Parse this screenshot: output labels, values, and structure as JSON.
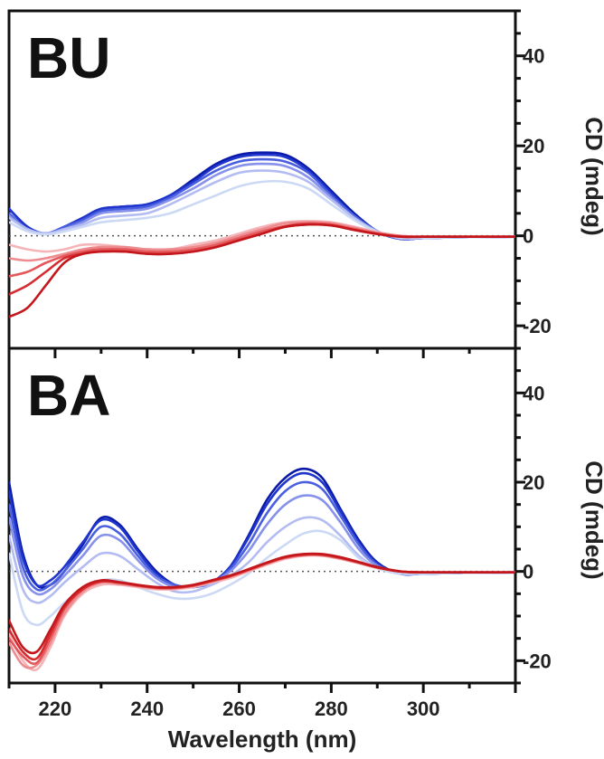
{
  "chart_data": [
    {
      "type": "line",
      "panel_label": "BU",
      "xlabel": "",
      "ylabel": "CD (mdeg)",
      "xlim": [
        210,
        320
      ],
      "ylim": [
        -25,
        50
      ],
      "x_ticks": [],
      "y_ticks": [
        40,
        20,
        0,
        -20
      ],
      "zero_reference_line": true,
      "grid": false,
      "x": [
        210,
        214,
        218,
        222,
        226,
        230,
        235,
        240,
        245,
        250,
        255,
        260,
        265,
        270,
        275,
        280,
        285,
        290,
        295,
        300,
        310,
        320
      ],
      "series": [
        {
          "color": "#0a1aa8",
          "values": [
            6,
            2,
            0.5,
            2,
            4,
            6,
            6.5,
            7,
            9,
            12.5,
            16,
            18,
            18.5,
            18,
            15,
            10,
            5,
            1,
            -0.7,
            -0.5,
            -0.3,
            -0.2
          ]
        },
        {
          "color": "#1f35cc",
          "values": [
            6,
            2,
            0.5,
            2,
            4,
            6,
            6.5,
            7,
            9,
            12,
            15.5,
            17.5,
            18,
            17.5,
            14.5,
            9.5,
            4.5,
            1,
            -0.7,
            -0.5,
            -0.3,
            -0.2
          ]
        },
        {
          "color": "#4a5fe0",
          "values": [
            5,
            1.5,
            0.5,
            2,
            3.5,
            5.5,
            6,
            6.5,
            8.5,
            11.5,
            14.5,
            16.5,
            17,
            16.5,
            14,
            9,
            4.5,
            1,
            -0.6,
            -0.5,
            -0.3,
            -0.2
          ]
        },
        {
          "color": "#8591ea",
          "values": [
            4.5,
            1.5,
            0.5,
            1.5,
            3,
            5,
            5.5,
            6,
            8,
            10.5,
            13.5,
            15.5,
            16,
            15.5,
            13,
            8.5,
            4,
            1,
            -0.6,
            -0.5,
            -0.3,
            -0.2
          ]
        },
        {
          "color": "#b3bcf2",
          "values": [
            4,
            1.5,
            0.5,
            1.5,
            2.5,
            4,
            4.5,
            5,
            7,
            9.5,
            12,
            14,
            14.5,
            14,
            12,
            8,
            4,
            1,
            -0.5,
            -0.5,
            -0.3,
            -0.2
          ]
        },
        {
          "color": "#cbd9f5",
          "values": [
            3,
            1,
            0.3,
            1,
            2,
            3,
            3.5,
            4,
            5,
            7,
            9,
            11,
            12,
            12,
            10.5,
            7,
            3.5,
            0.8,
            -0.4,
            -0.4,
            -0.3,
            -0.2
          ]
        },
        {
          "color": "#f4b5b8",
          "values": [
            -2,
            -3,
            -3.5,
            -3,
            -2,
            -2,
            -2.5,
            -3,
            -3,
            -2,
            -1,
            0.5,
            2,
            3,
            3.3,
            3,
            2,
            0.8,
            0,
            -0.2,
            -0.2,
            -0.2
          ]
        },
        {
          "color": "#ee8b8e",
          "values": [
            -5,
            -5.5,
            -5,
            -4,
            -3,
            -2.5,
            -2.5,
            -3,
            -3,
            -2.5,
            -1.5,
            0,
            1.5,
            2.8,
            3,
            2.8,
            1.8,
            0.7,
            0,
            -0.2,
            -0.2,
            -0.2
          ]
        },
        {
          "color": "#e4585c",
          "values": [
            -9,
            -8,
            -6,
            -4.5,
            -3.5,
            -3,
            -3,
            -3.5,
            -3.5,
            -3,
            -2,
            -0.5,
            1,
            2.2,
            2.8,
            2.5,
            1.5,
            0.5,
            -0.1,
            -0.2,
            -0.2,
            -0.2
          ]
        },
        {
          "color": "#d62b2f",
          "values": [
            -13,
            -11,
            -8,
            -5,
            -4,
            -3.5,
            -3.5,
            -4,
            -4,
            -3.5,
            -2.5,
            -1,
            0.5,
            2,
            2.5,
            2.3,
            1.3,
            0.4,
            -0.2,
            -0.2,
            -0.2,
            -0.2
          ]
        },
        {
          "color": "#c3171c",
          "values": [
            -18,
            -16,
            -11,
            -6,
            -4,
            -3.5,
            -3.5,
            -4,
            -4,
            -3.5,
            -2.5,
            -1,
            0.5,
            2,
            2.5,
            2.3,
            1.3,
            0.4,
            -0.2,
            -0.2,
            -0.2,
            -0.2
          ]
        }
      ]
    },
    {
      "type": "line",
      "panel_label": "BA",
      "xlabel": "Wavelength (nm)",
      "ylabel": "CD (mdeg)",
      "xlim": [
        210,
        320
      ],
      "ylim": [
        -25,
        50
      ],
      "x_ticks": [
        220,
        240,
        260,
        280,
        300
      ],
      "y_ticks": [
        40,
        20,
        0,
        -20
      ],
      "zero_reference_line": true,
      "grid": false,
      "x": [
        210,
        213,
        216,
        219,
        222,
        226,
        230,
        234,
        238,
        242,
        246,
        250,
        254,
        258,
        262,
        266,
        270,
        274,
        278,
        282,
        286,
        290,
        295,
        300,
        310,
        320
      ],
      "series": [
        {
          "color": "#0a1aa8",
          "values": [
            20,
            4,
            -3,
            -3,
            0,
            6,
            12,
            10.5,
            5,
            0,
            -3,
            -3.5,
            -2.5,
            1,
            8,
            16,
            21,
            23,
            21,
            14,
            7,
            2,
            -0.5,
            -0.5,
            -0.3,
            -0.2
          ]
        },
        {
          "color": "#1f35cc",
          "values": [
            18,
            3,
            -3,
            -2,
            1,
            6.5,
            11.5,
            10,
            4.5,
            -0.5,
            -3,
            -3.5,
            -2.5,
            1,
            7.5,
            15,
            20,
            22,
            20,
            13.5,
            6.5,
            1.8,
            -0.5,
            -0.5,
            -0.3,
            -0.2
          ]
        },
        {
          "color": "#4a5fe0",
          "values": [
            15,
            1,
            -4,
            -3,
            0,
            5,
            10,
            8.5,
            3.5,
            -1,
            -3,
            -3.5,
            -2.5,
            0.5,
            6,
            13,
            18,
            20,
            18.5,
            12.5,
            6,
            1.5,
            -0.5,
            -0.5,
            -0.3,
            -0.2
          ]
        },
        {
          "color": "#8591ea",
          "values": [
            12,
            -1,
            -5,
            -4,
            -1,
            3.5,
            8,
            7,
            2.5,
            -1.5,
            -3.5,
            -3.5,
            -2.5,
            0,
            4.5,
            10.5,
            15,
            17,
            16,
            11,
            5,
            1.2,
            -0.5,
            -0.5,
            -0.3,
            -0.2
          ]
        },
        {
          "color": "#b3bcf2",
          "values": [
            8,
            -4,
            -7,
            -5.5,
            -2.5,
            1,
            4,
            3.5,
            0.5,
            -2.5,
            -4.5,
            -4.5,
            -3,
            -1,
            2,
            6.5,
            10,
            12,
            11.5,
            8,
            3.5,
            0.8,
            -0.5,
            -0.5,
            -0.3,
            -0.2
          ]
        },
        {
          "color": "#cbd9f5",
          "values": [
            4,
            -9,
            -12,
            -10,
            -7,
            -4,
            -2,
            -2,
            -3.5,
            -5,
            -6,
            -6,
            -5,
            -3,
            -0.5,
            3,
            6,
            8.5,
            9,
            7,
            3,
            0.7,
            -0.4,
            -0.4,
            -0.3,
            -0.2
          ]
        },
        {
          "color": "#f4b5b8",
          "values": [
            -14,
            -20,
            -22,
            -17,
            -10,
            -5,
            -3,
            -3,
            -3.5,
            -4,
            -4,
            -3.5,
            -2.5,
            -1.5,
            0,
            1.5,
            2.8,
            3.5,
            3.5,
            2.8,
            1.8,
            0.8,
            0,
            -0.2,
            -0.2,
            -0.2
          ]
        },
        {
          "color": "#ee8b8e",
          "values": [
            -16,
            -21,
            -21,
            -16,
            -9.5,
            -4.5,
            -2.5,
            -2.8,
            -3.3,
            -3.8,
            -3.8,
            -3.3,
            -2.3,
            -1.2,
            0.2,
            1.7,
            3,
            3.6,
            3.6,
            2.9,
            1.9,
            0.8,
            0,
            -0.2,
            -0.2,
            -0.2
          ]
        },
        {
          "color": "#e4585c",
          "values": [
            -15,
            -19,
            -20.5,
            -15,
            -8.5,
            -4,
            -2.3,
            -2.6,
            -3.2,
            -3.7,
            -3.7,
            -3.2,
            -2.2,
            -1.1,
            0.3,
            1.8,
            3.1,
            3.7,
            3.7,
            3,
            2,
            0.9,
            0,
            -0.2,
            -0.2,
            -0.2
          ]
        },
        {
          "color": "#d62b2f",
          "values": [
            -13,
            -18,
            -19.5,
            -14,
            -8,
            -4,
            -2.2,
            -2.5,
            -3.1,
            -3.6,
            -3.6,
            -3.1,
            -2.1,
            -1,
            0.4,
            1.9,
            3.2,
            3.8,
            3.8,
            3.1,
            2,
            0.9,
            0,
            -0.2,
            -0.2,
            -0.2
          ]
        },
        {
          "color": "#c3171c",
          "values": [
            -11,
            -17,
            -18,
            -13,
            -7.5,
            -3.5,
            -2,
            -2.4,
            -3,
            -3.5,
            -3.5,
            -3,
            -2,
            -0.9,
            0.5,
            2,
            3.3,
            3.9,
            3.9,
            3.2,
            2.1,
            1,
            0,
            -0.2,
            -0.2,
            -0.2
          ]
        }
      ]
    }
  ]
}
